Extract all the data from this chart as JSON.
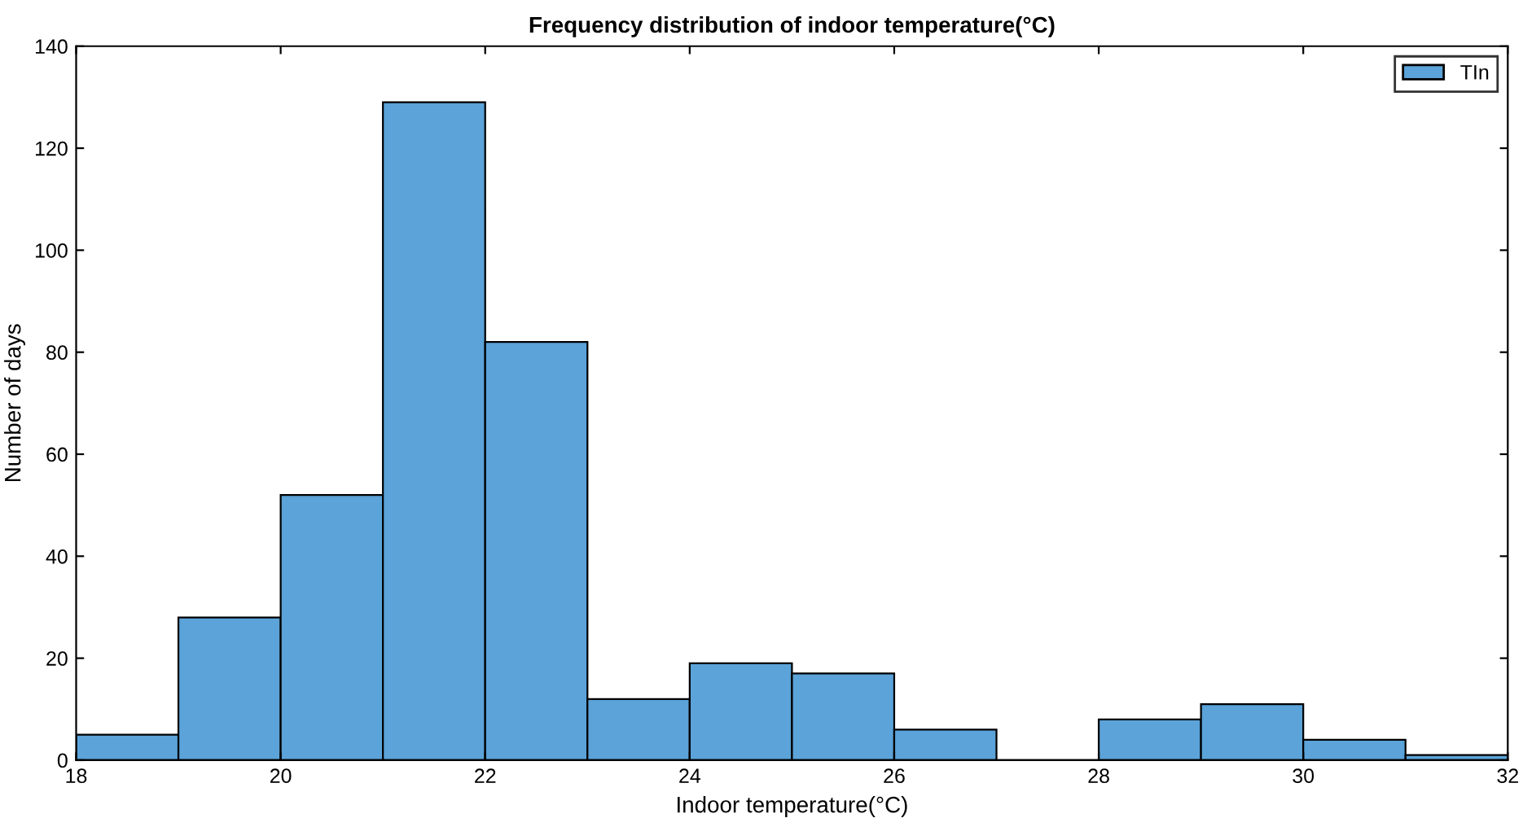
{
  "chart_data": {
    "type": "histogram",
    "title": "Frequency distribution of indoor temperature(°C)",
    "xlabel": "Indoor temperature(°C)",
    "ylabel": "Number of days",
    "bins": [
      18,
      19,
      20,
      21,
      22,
      23,
      24,
      25,
      26,
      27,
      28,
      29,
      30,
      31,
      32
    ],
    "series": [
      {
        "name": "TIn",
        "color": "#5ba3d8",
        "values": [
          5,
          28,
          52,
          129,
          82,
          12,
          19,
          17,
          6,
          0,
          8,
          11,
          4,
          1
        ]
      }
    ],
    "xlim": [
      18,
      32
    ],
    "xticks": [
      18,
      20,
      22,
      24,
      26,
      28,
      30,
      32
    ],
    "ylim": [
      0,
      140
    ],
    "yticks": [
      0,
      20,
      40,
      60,
      80,
      100,
      120,
      140
    ],
    "grid": false,
    "legend": "top right"
  }
}
